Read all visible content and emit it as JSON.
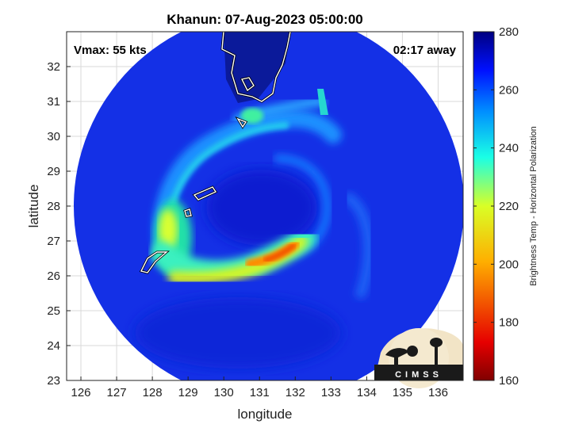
{
  "chart_data": {
    "type": "heatmap",
    "title": "Khanun: 07-Aug-2023 05:00:00",
    "xlabel": "longitude",
    "ylabel": "latitude",
    "xlim": [
      125.6,
      136.7
    ],
    "ylim": [
      23,
      33
    ],
    "xticks": [
      "126",
      "127",
      "128",
      "129",
      "130",
      "131",
      "132",
      "133",
      "134",
      "135",
      "136"
    ],
    "yticks": [
      "23",
      "24",
      "25",
      "26",
      "27",
      "28",
      "29",
      "30",
      "31",
      "32"
    ],
    "grid": true,
    "annotations": {
      "top_left": "Vmax: 55 kts",
      "top_right": "02:17 away"
    },
    "colorbar": {
      "label": "Brightness Temp - Horizontal Polarization",
      "range": [
        160,
        280
      ],
      "ticks": [
        "160",
        "180",
        "200",
        "220",
        "240",
        "260",
        "280"
      ],
      "colormap": "jet"
    },
    "swath_center": [
      131.0,
      27.8
    ],
    "features": [
      {
        "name": "outer rainband",
        "temp_min": 225,
        "lon": [
          127.8,
          131.5
        ],
        "lat": [
          28.5,
          31.2
        ]
      },
      {
        "name": "southern convective band",
        "temp_min": 190,
        "lon": [
          128.5,
          132.5
        ],
        "lat": [
          26.0,
          26.8
        ]
      },
      {
        "name": "western convective region",
        "temp_min": 205,
        "lon": [
          128.0,
          129.0
        ],
        "lat": [
          26.3,
          27.7
        ]
      },
      {
        "name": "eye",
        "temp_min": 255,
        "lon": [
          130.0,
          131.5
        ],
        "lat": [
          27.5,
          28.5
        ]
      }
    ]
  },
  "logo": {
    "text": "CIMSS"
  }
}
